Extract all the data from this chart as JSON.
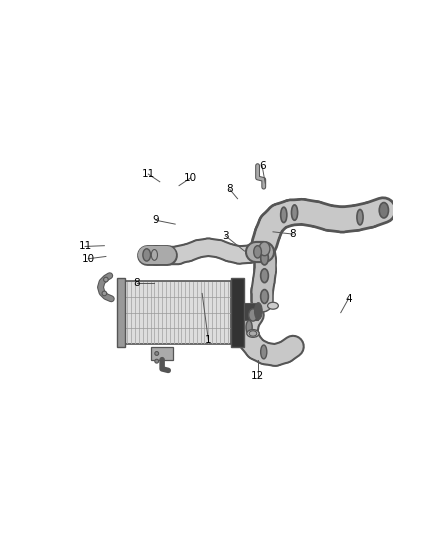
{
  "bg_color": "#ffffff",
  "fig_width": 4.38,
  "fig_height": 5.33,
  "dpi": 100,
  "line_color": "#555555",
  "text_color": "#000000",
  "pipe_fill": "#c8c8c8",
  "pipe_edge": "#555555",
  "cooler_fin_bg": "#dddddd",
  "cooler_fin_line": "#888888",
  "cooler_cap_dark": "#222222",
  "bracket_color": "#888888"
}
